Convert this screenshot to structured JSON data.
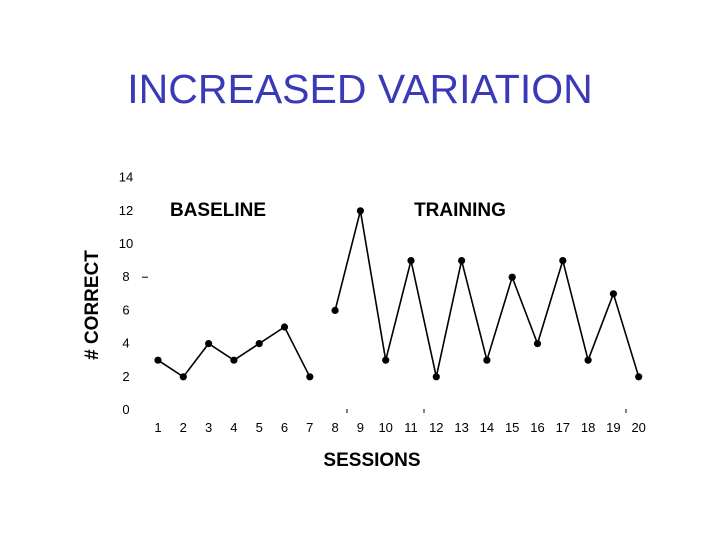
{
  "slide": {
    "title": "INCREASED VARIATION"
  },
  "chart_data": {
    "type": "line",
    "xlabel": "SESSIONS",
    "ylabel": "# CORRECT",
    "ylim": [
      0,
      14
    ],
    "xlim": [
      1,
      20
    ],
    "yticks": [
      0,
      2,
      4,
      6,
      8,
      10,
      12,
      14
    ],
    "xticks": [
      1,
      2,
      3,
      4,
      5,
      6,
      7,
      8,
      9,
      10,
      11,
      12,
      13,
      14,
      15,
      16,
      17,
      18,
      19,
      20
    ],
    "grid": false,
    "annotations": [
      "BASELINE",
      "TRAINING"
    ],
    "series": [
      {
        "x": [
          1,
          2,
          3,
          4,
          5,
          6,
          7
        ],
        "values": [
          3,
          2,
          4,
          3,
          4,
          5,
          2
        ]
      },
      {
        "x": [
          8,
          9,
          10,
          11,
          12,
          13,
          14,
          15,
          16,
          17,
          18,
          19,
          20
        ],
        "values": [
          6,
          12,
          3,
          9,
          2,
          9,
          3,
          8,
          4,
          9,
          3,
          7,
          2
        ]
      }
    ],
    "color": "#000000"
  }
}
